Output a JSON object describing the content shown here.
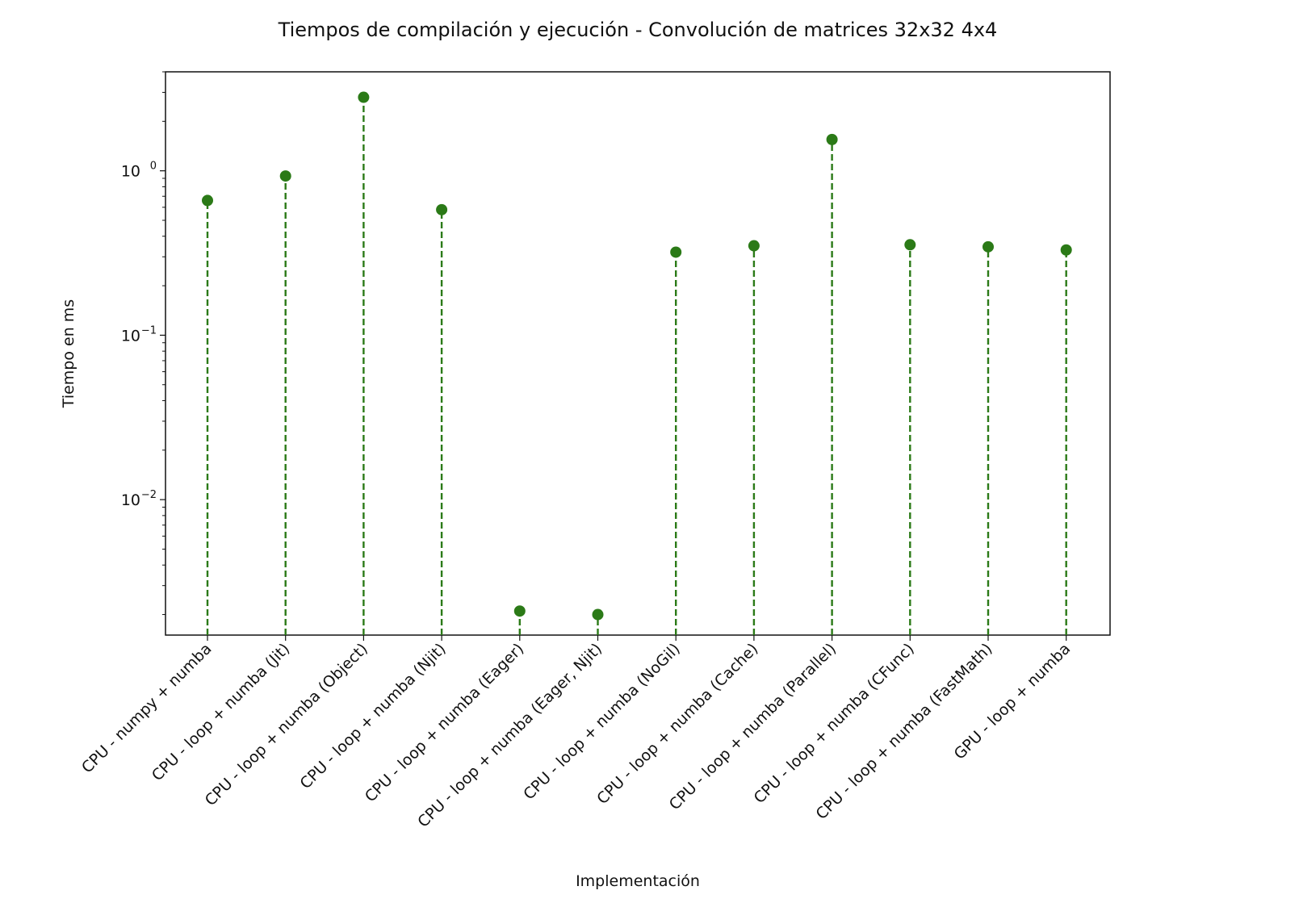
{
  "chart_data": {
    "type": "scatter",
    "style": "stem",
    "title": "Tiempos de compilación y ejecución - Convolución de matrices 32x32 4x4",
    "xlabel": "Implementación",
    "ylabel": "Tiempo en ms",
    "yscale": "log",
    "ylim": [
      0.0015,
      4.0
    ],
    "yticks": [
      {
        "value": 1,
        "base": "10",
        "exp": "0"
      },
      {
        "value": 0.1,
        "base": "10",
        "exp": "−1"
      },
      {
        "value": 0.01,
        "base": "10",
        "exp": "−2"
      }
    ],
    "color": "#2b7a17",
    "grid": false,
    "categories": [
      "CPU - numpy + numba",
      "CPU - loop + numba (Jit)",
      "CPU - loop + numba (Object)",
      "CPU - loop + numba (Njit)",
      "CPU - loop + numba (Eager)",
      "CPU - loop + numba (Eager, Njit)",
      "CPU - loop + numba (NoGil)",
      "CPU - loop + numba (Cache)",
      "CPU - loop + numba (Parallel)",
      "CPU - loop + numba (CFunc)",
      "CPU - loop + numba (FastMath)",
      "GPU - loop + numba"
    ],
    "values": [
      0.66,
      0.93,
      2.8,
      0.58,
      0.0021,
      0.002,
      0.32,
      0.35,
      1.55,
      0.355,
      0.345,
      0.33
    ]
  }
}
